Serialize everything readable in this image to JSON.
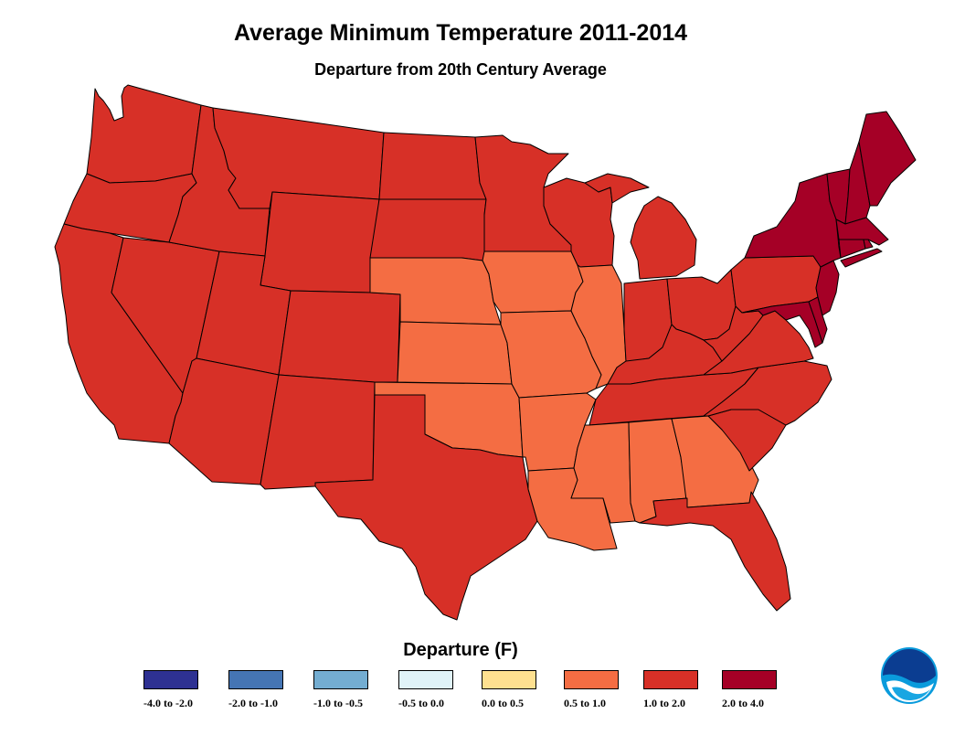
{
  "title": "Average Minimum Temperature 2011-2014",
  "subtitle": "Departure from 20th Century Average",
  "legend": {
    "title": "Departure (F)",
    "bins": [
      {
        "label": "-4.0 to -2.0",
        "color": "#2e3192"
      },
      {
        "label": "-2.0 to -1.0",
        "color": "#4575b4"
      },
      {
        "label": "-1.0 to -0.5",
        "color": "#74add1"
      },
      {
        "label": "-0.5 to 0.0",
        "color": "#e0f3f8"
      },
      {
        "label": "0.0 to 0.5",
        "color": "#fee090"
      },
      {
        "label": "0.5  to 1.0",
        "color": "#f46d43"
      },
      {
        "label": "1.0  to 2.0",
        "color": "#d73027"
      },
      {
        "label": "2.0 to 4.0",
        "color": "#a50026"
      }
    ]
  },
  "state_bins": {
    "WA": "1.0  to 2.0",
    "OR": "1.0  to 2.0",
    "CA": "1.0  to 2.0",
    "NV": "1.0  to 2.0",
    "ID": "1.0  to 2.0",
    "MT": "1.0  to 2.0",
    "WY": "1.0  to 2.0",
    "UT": "1.0  to 2.0",
    "AZ": "1.0  to 2.0",
    "CO": "1.0  to 2.0",
    "NM": "1.0  to 2.0",
    "ND": "1.0  to 2.0",
    "SD": "1.0  to 2.0",
    "NE": "0.5  to 1.0",
    "KS": "0.5  to 1.0",
    "OK": "0.5  to 1.0",
    "TX": "1.0  to 2.0",
    "MN": "1.0  to 2.0",
    "IA": "0.5  to 1.0",
    "MO": "0.5  to 1.0",
    "AR": "0.5  to 1.0",
    "LA": "0.5  to 1.0",
    "WI": "1.0  to 2.0",
    "IL": "0.5  to 1.0",
    "MI": "1.0  to 2.0",
    "IN": "1.0  to 2.0",
    "OH": "1.0  to 2.0",
    "KY": "1.0  to 2.0",
    "TN": "1.0  to 2.0",
    "MS": "0.5  to 1.0",
    "AL": "0.5  to 1.0",
    "GA": "0.5  to 1.0",
    "FL": "1.0  to 2.0",
    "SC": "1.0  to 2.0",
    "NC": "1.0  to 2.0",
    "VA": "1.0  to 2.0",
    "WV": "1.0  to 2.0",
    "PA": "1.0  to 2.0",
    "NY": "2.0 to 4.0",
    "VT": "2.0 to 4.0",
    "NH": "2.0 to 4.0",
    "ME": "2.0 to 4.0",
    "MA": "2.0 to 4.0",
    "RI": "2.0 to 4.0",
    "CT": "2.0 to 4.0",
    "NJ": "2.0 to 4.0",
    "DE": "2.0 to 4.0",
    "MD": "2.0 to 4.0"
  },
  "logo_name": "noaa-logo"
}
